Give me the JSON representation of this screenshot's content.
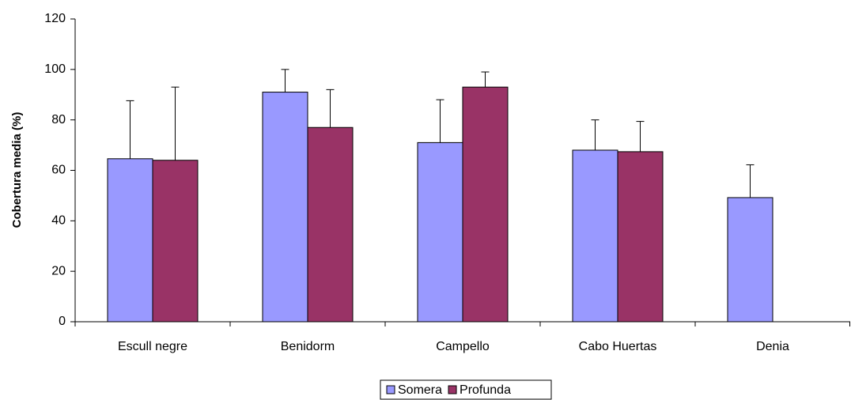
{
  "chart_data": {
    "type": "bar",
    "y_label": "Cobertura media (%)",
    "categories": [
      "Escull negre",
      "Benidorm",
      "Campello",
      "Cabo Huertas",
      "Denia"
    ],
    "series": [
      {
        "name": "Somera",
        "color": "#9999ff",
        "values": [
          64.6,
          91,
          71,
          68,
          49.2
        ],
        "errors": [
          23,
          9,
          17,
          12,
          13
        ]
      },
      {
        "name": "Profunda",
        "color": "#993366",
        "values": [
          64,
          77,
          93,
          67.4,
          null
        ],
        "errors": [
          29,
          15,
          6,
          12,
          null
        ]
      }
    ],
    "ylim": [
      0,
      120
    ],
    "yticks": [
      0,
      20,
      40,
      60,
      80,
      100,
      120
    ],
    "legend": "bottom"
  }
}
